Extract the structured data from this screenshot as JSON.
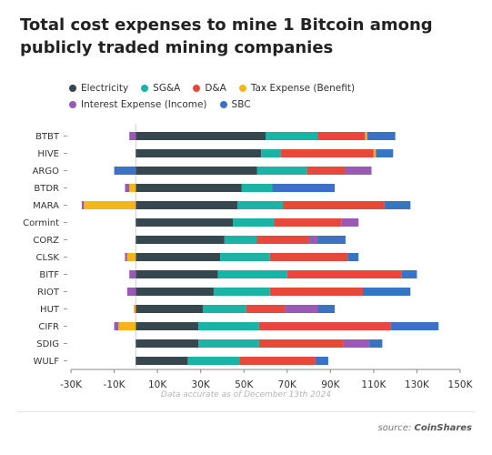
{
  "chart_data": {
    "type": "bar",
    "orientation": "horizontal",
    "stacked": true,
    "title": "Total cost expenses to mine 1 Bitcoin among publicly traded mining companies",
    "xlabel": "",
    "ylabel": "",
    "xlim": [
      -30000,
      150000
    ],
    "x_ticks": [
      -30000,
      -10000,
      10000,
      30000,
      50000,
      70000,
      90000,
      110000,
      130000,
      150000
    ],
    "x_tick_labels": [
      "-30K",
      "-10K",
      "10K",
      "30K",
      "50K",
      "70K",
      "90K",
      "110K",
      "130K",
      "150K"
    ],
    "grid": false,
    "legend_position": "top-left",
    "categories": [
      "BTBT",
      "HIVE",
      "ARGO",
      "BTDR",
      "MARA",
      "Cormint",
      "CORZ",
      "CLSK",
      "BITF",
      "RIOT",
      "HUT",
      "CIFR",
      "SDIG",
      "WULF"
    ],
    "series": [
      {
        "name": "Electricity",
        "color": "#37474f",
        "values": [
          60000,
          58000,
          56000,
          49000,
          47000,
          45000,
          41000,
          39000,
          38000,
          36000,
          31000,
          29000,
          29000,
          24000
        ]
      },
      {
        "name": "SG&A",
        "color": "#1ab3a6",
        "values": [
          24000,
          9000,
          23000,
          14000,
          21000,
          19000,
          15000,
          23000,
          32000,
          26000,
          20000,
          28000,
          28000,
          24000
        ]
      },
      {
        "name": "D&A",
        "color": "#e8483b",
        "values": [
          22000,
          43000,
          18000,
          0,
          47000,
          31000,
          24000,
          36000,
          53000,
          43000,
          18000,
          61000,
          39000,
          35000
        ]
      },
      {
        "name": "Tax Expense (Benefit)",
        "color": "#f4b41a",
        "values": [
          1000,
          1000,
          0,
          -3000,
          -24000,
          0,
          0,
          -4000,
          0,
          0,
          -1000,
          -8000,
          0,
          0
        ]
      },
      {
        "name": "Interest Expense (Income)",
        "color": "#9b59b6",
        "values": [
          -3000,
          0,
          12000,
          -2000,
          -1000,
          8000,
          4000,
          -1000,
          -3000,
          -4000,
          15000,
          -2000,
          12000,
          0
        ]
      },
      {
        "name": "SBC",
        "color": "#3a73c4",
        "values": [
          13000,
          8000,
          -10000,
          29000,
          12000,
          0,
          13000,
          5000,
          7000,
          22000,
          8000,
          22000,
          6000,
          6000
        ]
      }
    ],
    "footnote": "Data accurate as of December 13th 2024",
    "source_prefix": "source: ",
    "source_name": "CoinShares"
  }
}
